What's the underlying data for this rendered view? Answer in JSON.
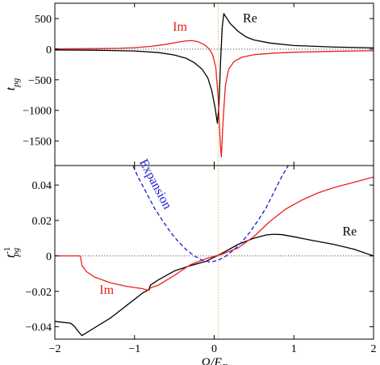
{
  "chart_data": [
    {
      "panel": "top",
      "type": "line",
      "xlim": [
        -2,
        2
      ],
      "ylim": [
        -1900,
        750
      ],
      "yticks": [
        500,
        0,
        -500,
        -1000,
        -1500
      ],
      "ylabel_main": "t",
      "ylabel_sub": "pg",
      "zero_line": true,
      "vline_x": 0.05,
      "series": [
        {
          "name": "Re",
          "color": "#000000",
          "points": [
            [
              -2,
              -12
            ],
            [
              -1.5,
              -17
            ],
            [
              -1,
              -30
            ],
            [
              -0.7,
              -55
            ],
            [
              -0.5,
              -95
            ],
            [
              -0.35,
              -150
            ],
            [
              -0.25,
              -220
            ],
            [
              -0.15,
              -330
            ],
            [
              -0.08,
              -470
            ],
            [
              -0.03,
              -680
            ],
            [
              0.01,
              -950
            ],
            [
              0.04,
              -1210
            ],
            [
              0.06,
              -900
            ],
            [
              0.08,
              -200
            ],
            [
              0.1,
              350
            ],
            [
              0.12,
              580
            ],
            [
              0.15,
              520
            ],
            [
              0.2,
              420
            ],
            [
              0.3,
              290
            ],
            [
              0.4,
              200
            ],
            [
              0.5,
              150
            ],
            [
              0.7,
              100
            ],
            [
              1,
              60
            ],
            [
              1.5,
              35
            ],
            [
              2,
              22
            ]
          ]
        },
        {
          "name": "Im",
          "color": "#e8211b",
          "points": [
            [
              -2,
              5
            ],
            [
              -1.5,
              9
            ],
            [
              -1.2,
              15
            ],
            [
              -1,
              25
            ],
            [
              -0.8,
              45
            ],
            [
              -0.6,
              80
            ],
            [
              -0.45,
              115
            ],
            [
              -0.35,
              135
            ],
            [
              -0.28,
              140
            ],
            [
              -0.2,
              120
            ],
            [
              -0.12,
              70
            ],
            [
              -0.06,
              0
            ],
            [
              -0.02,
              -90
            ],
            [
              0.02,
              -300
            ],
            [
              0.05,
              -800
            ],
            [
              0.075,
              -1520
            ],
            [
              0.09,
              -1760
            ],
            [
              0.11,
              -1200
            ],
            [
              0.14,
              -600
            ],
            [
              0.18,
              -330
            ],
            [
              0.25,
              -200
            ],
            [
              0.35,
              -130
            ],
            [
              0.5,
              -90
            ],
            [
              0.75,
              -65
            ],
            [
              1,
              -50
            ],
            [
              1.5,
              -35
            ],
            [
              2,
              -25
            ]
          ]
        }
      ],
      "annotations": [
        {
          "text": "Re",
          "x": 0.45,
          "y": 440
        },
        {
          "text": "Im",
          "x": -0.43,
          "y": 305
        }
      ]
    },
    {
      "panel": "bottom",
      "type": "line",
      "xlim": [
        -2,
        2
      ],
      "ylim": [
        -0.047,
        0.051
      ],
      "xticks": [
        -2,
        -1,
        0,
        1,
        2
      ],
      "yticks": [
        0.04,
        0.02,
        0,
        -0.02,
        -0.04
      ],
      "xlabel_main": "Ω/E",
      "xlabel_sub": "F",
      "ylabel_main": "t",
      "ylabel_sup": "-1",
      "ylabel_sub": "pg",
      "zero_line": true,
      "vline_x": 0.05,
      "series": [
        {
          "name": "Re",
          "color": "#000000",
          "points": [
            [
              -2,
              -0.037
            ],
            [
              -1.8,
              -0.038
            ],
            [
              -1.75,
              -0.04
            ],
            [
              -1.7,
              -0.043
            ],
            [
              -1.66,
              -0.045
            ],
            [
              -1.5,
              -0.0405
            ],
            [
              -1.3,
              -0.035
            ],
            [
              -1.1,
              -0.028
            ],
            [
              -0.9,
              -0.021
            ],
            [
              -0.82,
              -0.019
            ],
            [
              -0.8,
              -0.0165
            ],
            [
              -0.75,
              -0.015
            ],
            [
              -0.7,
              -0.0135
            ],
            [
              -0.5,
              -0.0085
            ],
            [
              -0.3,
              -0.0055
            ],
            [
              -0.1,
              -0.003
            ],
            [
              0.1,
              0.0015
            ],
            [
              0.3,
              0.0065
            ],
            [
              0.5,
              0.01
            ],
            [
              0.65,
              0.0118
            ],
            [
              0.75,
              0.0122
            ],
            [
              0.85,
              0.012
            ],
            [
              1,
              0.0108
            ],
            [
              1.2,
              0.009
            ],
            [
              1.5,
              0.0065
            ],
            [
              1.75,
              0.0038
            ],
            [
              2,
              0.0
            ]
          ]
        },
        {
          "name": "Im",
          "color": "#e8211b",
          "points": [
            [
              -2,
              0
            ],
            [
              -1.68,
              0
            ],
            [
              -1.66,
              -0.0055
            ],
            [
              -1.6,
              -0.009
            ],
            [
              -1.5,
              -0.012
            ],
            [
              -1.3,
              -0.0152
            ],
            [
              -1.1,
              -0.0172
            ],
            [
              -0.9,
              -0.0185
            ],
            [
              -0.82,
              -0.0195
            ],
            [
              -0.8,
              -0.018
            ],
            [
              -0.7,
              -0.0165
            ],
            [
              -0.5,
              -0.011
            ],
            [
              -0.3,
              -0.005
            ],
            [
              -0.1,
              -0.0015
            ],
            [
              0.1,
              0.001
            ],
            [
              0.3,
              0.0045
            ],
            [
              0.5,
              0.011
            ],
            [
              0.7,
              0.0195
            ],
            [
              0.9,
              0.0265
            ],
            [
              1.1,
              0.0315
            ],
            [
              1.3,
              0.0355
            ],
            [
              1.5,
              0.0385
            ],
            [
              1.75,
              0.0415
            ],
            [
              2,
              0.0445
            ]
          ]
        },
        {
          "name": "Expansion",
          "color": "#1a1ad8",
          "dashed": true,
          "points": [
            [
              -1.05,
              0.054
            ],
            [
              -0.95,
              0.044
            ],
            [
              -0.85,
              0.0355
            ],
            [
              -0.75,
              0.027
            ],
            [
              -0.65,
              0.02
            ],
            [
              -0.55,
              0.0135
            ],
            [
              -0.45,
              0.008
            ],
            [
              -0.35,
              0.0035
            ],
            [
              -0.25,
              0.0
            ],
            [
              -0.15,
              -0.0025
            ],
            [
              -0.05,
              -0.0035
            ],
            [
              0.05,
              -0.0025
            ],
            [
              0.15,
              0.0
            ],
            [
              0.25,
              0.0035
            ],
            [
              0.35,
              0.008
            ],
            [
              0.45,
              0.0135
            ],
            [
              0.55,
              0.02
            ],
            [
              0.65,
              0.027
            ],
            [
              0.75,
              0.036
            ],
            [
              0.85,
              0.045
            ],
            [
              0.93,
              0.051
            ]
          ]
        }
      ],
      "annotations": [
        {
          "text": "Re",
          "x": 1.7,
          "y": 0.0115
        },
        {
          "text": "Im",
          "x": -1.35,
          "y": -0.0215
        },
        {
          "text": "Expansion",
          "x": -0.78,
          "y": 0.0395,
          "rotate": 62,
          "color": "#1a1ad8"
        }
      ]
    }
  ]
}
